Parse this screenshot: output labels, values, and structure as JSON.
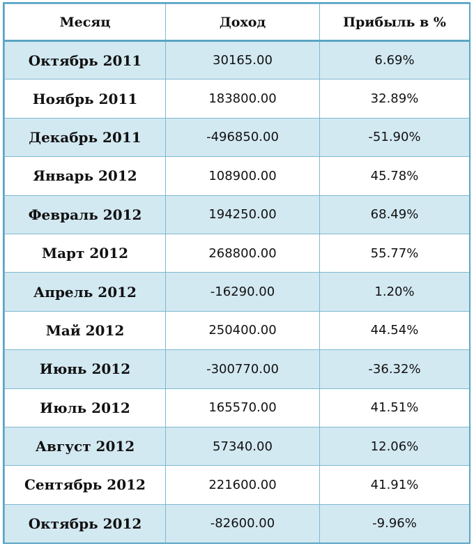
{
  "table": {
    "headers": [
      "Месяц",
      "Доход",
      "Прибыль в %"
    ],
    "rows": [
      {
        "month": "Октябрь 2011",
        "income": "30165.00",
        "profit": "6.69%"
      },
      {
        "month": "Ноябрь 2011",
        "income": "183800.00",
        "profit": "32.89%"
      },
      {
        "month": "Декабрь 2011",
        "income": "-496850.00",
        "profit": "-51.90%"
      },
      {
        "month": "Январь 2012",
        "income": "108900.00",
        "profit": "45.78%"
      },
      {
        "month": "Февраль 2012",
        "income": "194250.00",
        "profit": "68.49%"
      },
      {
        "month": "Март 2012",
        "income": "268800.00",
        "profit": "55.77%"
      },
      {
        "month": "Апрель 2012",
        "income": "-16290.00",
        "profit": "1.20%"
      },
      {
        "month": "Май 2012",
        "income": "250400.00",
        "profit": "44.54%"
      },
      {
        "month": "Июнь 2012",
        "income": "-300770.00",
        "profit": "-36.32%"
      },
      {
        "month": "Июль 2012",
        "income": "165570.00",
        "profit": "41.51%"
      },
      {
        "month": "Август 2012",
        "income": "57340.00",
        "profit": "12.06%"
      },
      {
        "month": "Сентябрь 2012",
        "income": "221600.00",
        "profit": "41.91%"
      },
      {
        "month": "Октябрь 2012",
        "income": "-82600.00",
        "profit": "-9.96%"
      }
    ]
  },
  "colors": {
    "border": "#5aa5c4",
    "shaded_row": "#d3e9f2",
    "plain_row": "#ffffff"
  }
}
